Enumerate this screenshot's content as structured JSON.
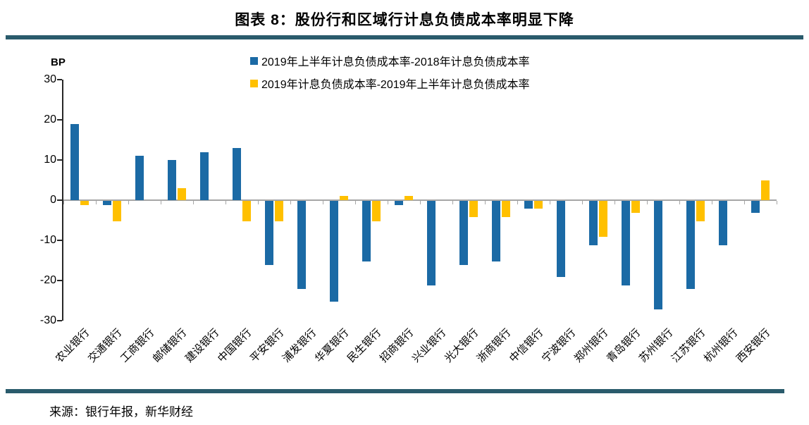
{
  "page": {
    "title": "图表 8：股份行和区域行计息负债成本率明显下降",
    "source": "来源：银行年报，新华财经"
  },
  "colors": {
    "series1": "#1B6AA5",
    "series2": "#FFC000",
    "rule": "#2A5B6C",
    "axis": "#262626",
    "gridline": "#A6A6A6"
  },
  "chart_data": {
    "type": "bar",
    "title": "图表 8：股份行和区域行计息负债成本率明显下降",
    "unit_label": "BP",
    "xlabel": "",
    "ylabel": "BP",
    "ylim": [
      -30,
      30
    ],
    "yticks": [
      30,
      20,
      10,
      0,
      -10,
      -20,
      -30
    ],
    "grid": false,
    "legend_position": "top-center",
    "categories": [
      "农业银行",
      "交通银行",
      "工商银行",
      "邮储银行",
      "建设银行",
      "中国银行",
      "平安银行",
      "浦发银行",
      "华夏银行",
      "民生银行",
      "招商银行",
      "兴业银行",
      "光大银行",
      "浙商银行",
      "中信银行",
      "宁波银行",
      "郑州银行",
      "青岛银行",
      "苏州银行",
      "江苏银行",
      "杭州银行",
      "西安银行"
    ],
    "series": [
      {
        "name": "2019年上半年计息负债成本率-2018年计息负债成本率",
        "color": "#1B6AA5",
        "values": [
          19,
          -1,
          11,
          10,
          12,
          13,
          -16,
          -22,
          -25,
          -15,
          -1,
          -21,
          -16,
          -15,
          -2,
          -19,
          -11,
          -21,
          -27,
          -22,
          -11,
          -3
        ]
      },
      {
        "name": "2019年计息负债成本率-2019年上半年计息负债成本率",
        "color": "#FFC000",
        "values": [
          -1,
          -5,
          0,
          3,
          0,
          -5,
          -5,
          0,
          1,
          -5,
          1,
          0,
          -4,
          -4,
          -2,
          0,
          -9,
          -3,
          0,
          -5,
          0,
          5
        ]
      }
    ]
  }
}
